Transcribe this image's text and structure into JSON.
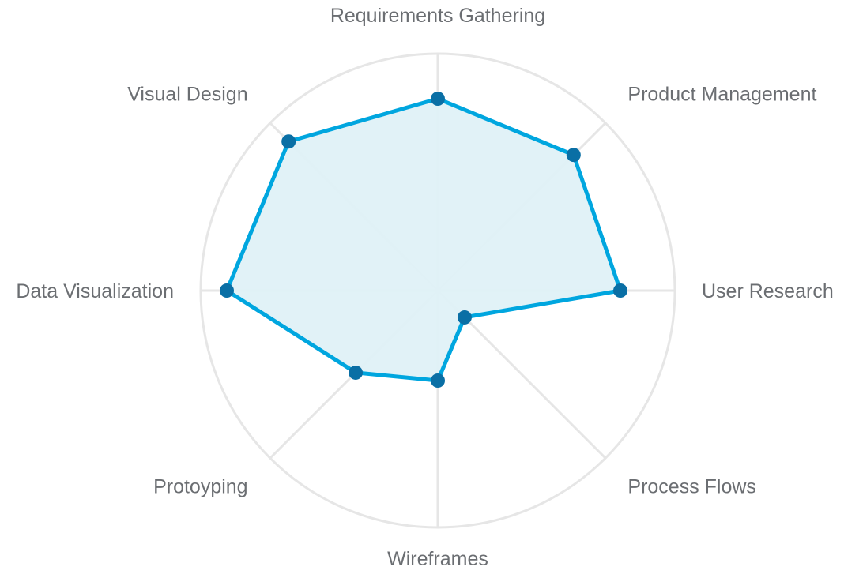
{
  "chart_data": {
    "type": "radar",
    "axes": [
      "Requirements Gathering",
      "Product Management",
      "User Research",
      "Process Flows",
      "Wireframes",
      "Protoyping",
      "Data Visualization",
      "Visual Design"
    ],
    "values": [
      0.81,
      0.81,
      0.77,
      0.16,
      0.38,
      0.49,
      0.89,
      0.89
    ],
    "range": [
      0,
      1
    ],
    "grid": true,
    "legend": "none",
    "colors": {
      "line": "#00a6df",
      "fill": "#dff1f7",
      "point": "#0a6fa5",
      "grid": "#e6e6e6",
      "label": "#6b6e72"
    }
  }
}
